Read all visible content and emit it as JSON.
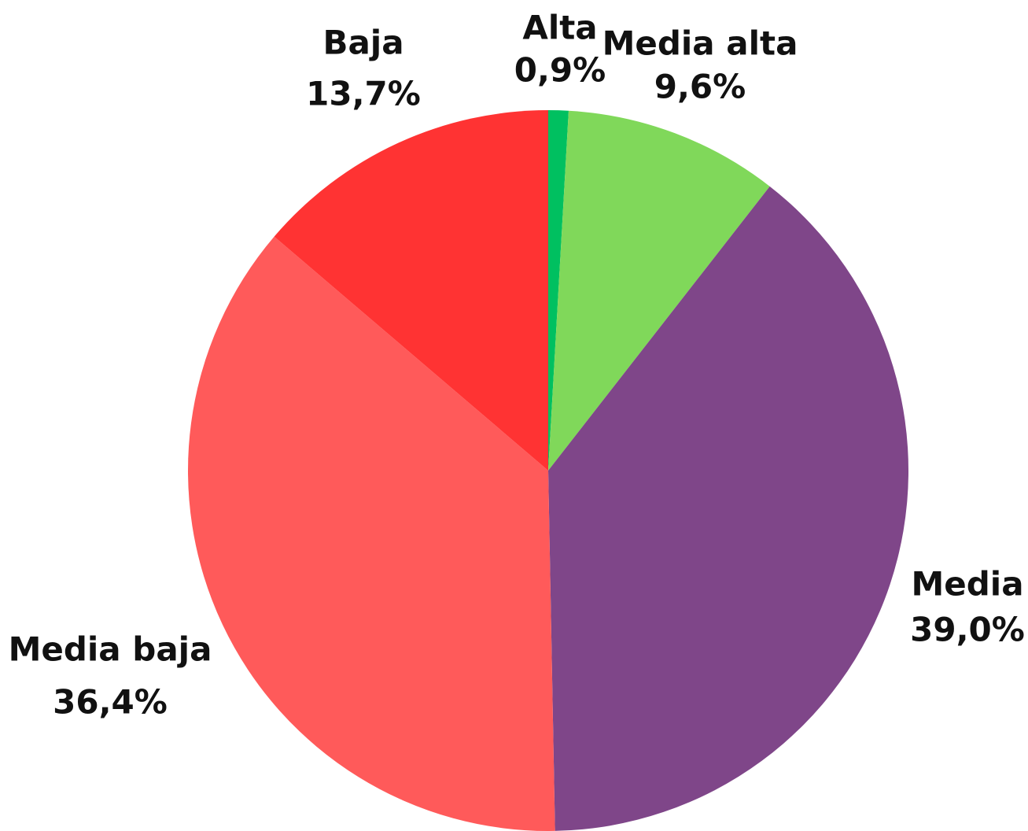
{
  "chart_data": {
    "type": "pie",
    "categories": [
      "Alta",
      "Media alta",
      "Media",
      "Media baja",
      "Baja"
    ],
    "values": [
      0.9,
      9.6,
      39.0,
      36.4,
      13.7
    ],
    "value_labels": [
      "0,9%",
      "9,6%",
      "39,0%",
      "36,4%",
      "13,7%"
    ],
    "colors": [
      "#00c060",
      "#80d85a",
      "#7f4689",
      "#ff5a5a",
      "#ff3333"
    ]
  }
}
